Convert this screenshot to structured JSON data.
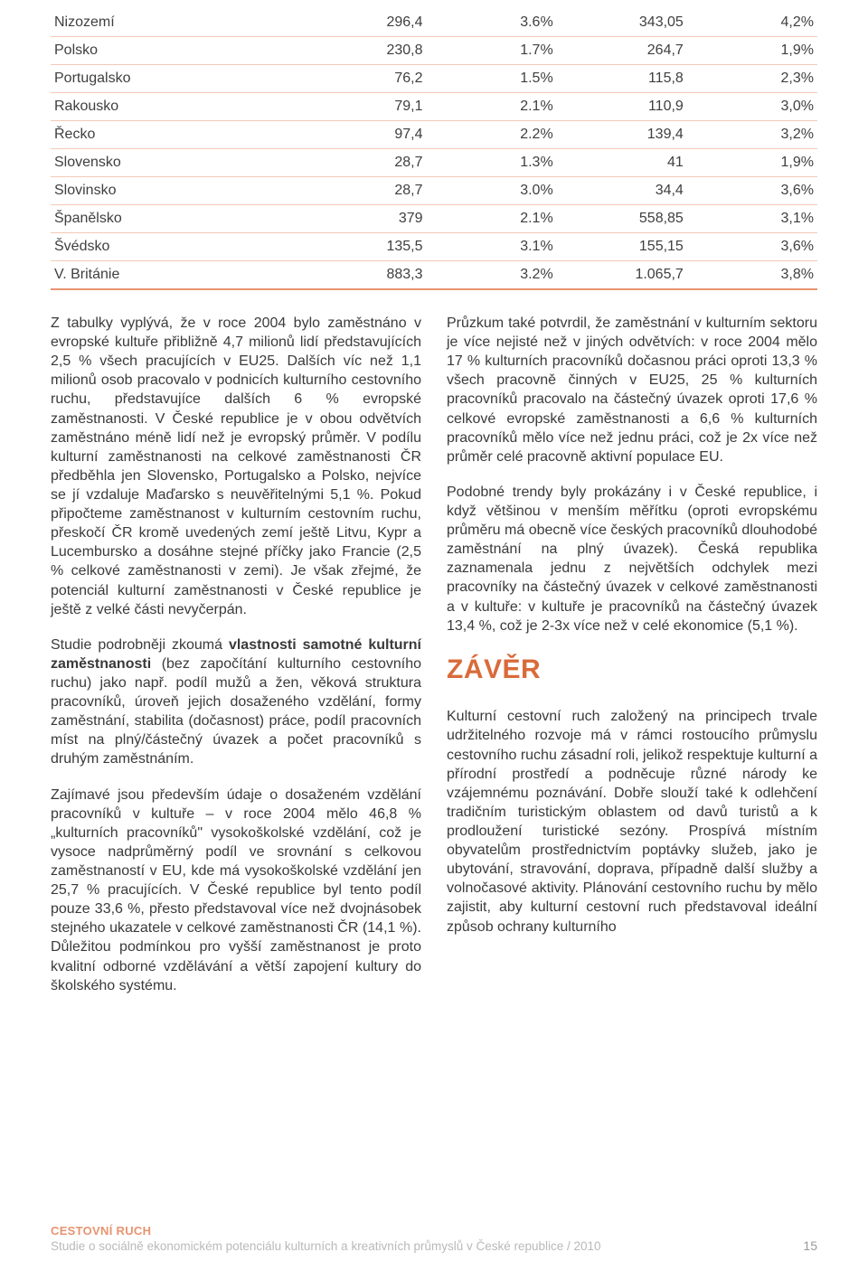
{
  "table": {
    "rows": [
      {
        "country": "Nizozemí",
        "v1": "296,4",
        "p1": "3.6%",
        "v2": "343,05",
        "p2": "4,2%"
      },
      {
        "country": "Polsko",
        "v1": "230,8",
        "p1": "1.7%",
        "v2": "264,7",
        "p2": "1,9%"
      },
      {
        "country": "Portugalsko",
        "v1": "76,2",
        "p1": "1.5%",
        "v2": "115,8",
        "p2": "2,3%"
      },
      {
        "country": "Rakousko",
        "v1": "79,1",
        "p1": "2.1%",
        "v2": "110,9",
        "p2": "3,0%"
      },
      {
        "country": "Řecko",
        "v1": "97,4",
        "p1": "2.2%",
        "v2": "139,4",
        "p2": "3,2%"
      },
      {
        "country": "Slovensko",
        "v1": "28,7",
        "p1": "1.3%",
        "v2": "41",
        "p2": "1,9%"
      },
      {
        "country": "Slovinsko",
        "v1": "28,7",
        "p1": "3.0%",
        "v2": "34,4",
        "p2": "3,6%"
      },
      {
        "country": "Španělsko",
        "v1": "379",
        "p1": "2.1%",
        "v2": "558,85",
        "p2": "3,1%"
      },
      {
        "country": "Švédsko",
        "v1": "135,5",
        "p1": "3.1%",
        "v2": "155,15",
        "p2": "3,6%"
      },
      {
        "country": "V. Británie",
        "v1": "883,3",
        "p1": "3.2%",
        "v2": "1.065,7",
        "p2": "3,8%"
      }
    ],
    "row_border_color": "#f4c9b8",
    "last_row_border_color": "#e89470",
    "text_color": "#3f3f3f"
  },
  "body_left": {
    "p1": "Z tabulky vyplývá, že v roce 2004 bylo zaměstnáno v evropské kultuře přibližně 4,7 milionů lidí představujících 2,5 % všech pracujících v EU25. Dalších víc než 1,1 milionů osob pracovalo v podnicích kulturního cestovního ruchu, představujíce dalších 6 % evropské zaměstnanosti. V České republice je v obou odvětvích zaměstnáno méně lidí než je evropský průměr. V podílu kulturní zaměstnanosti na celkové zaměstnanosti ČR předběhla jen Slovensko, Portugalsko a Polsko, nejvíce se jí vzdaluje Maďarsko s neuvěřitelnými 5,1 %. Pokud připočteme zaměstnanost v kulturním cestovním ruchu, přeskočí ČR kromě uvedených zemí ještě Litvu, Kypr a Lucembursko a dosáhne stejné příčky jako Francie (2,5 % celkové zaměstnanosti v zemi). Je však zřejmé, že potenciál kulturní zaměstnanosti v České republice je ještě z velké části nevyčerpán.",
    "p2a": "Studie podrobněji zkoumá ",
    "p2b": "vlastnosti samotné kulturní zaměstnanosti",
    "p2c": " (bez započítání kulturního cestovního ruchu) jako např. podíl mužů a žen, věková struktura pracovníků, úroveň jejich dosaženého vzdělání, formy zaměstnání, stabilita (dočasnost) práce, podíl pracovních míst na plný/částečný úvazek a počet pracovníků s druhým zaměstnáním.",
    "p3": "Zajímavé jsou především údaje o dosaženém vzdělání pracovníků v kultuře – v roce 2004 mělo 46,8 % „kulturních pracovníků\" vysokoškolské vzdělání, což je vysoce nadprůměrný podíl ve srovnání s celkovou zaměstnaností v EU, kde má vysokoškolské vzdělání jen 25,7 % pracujících. V České republice byl tento podíl pouze 33,6 %, přesto představoval více než dvojnásobek stejného ukazatele v celkové zaměstnanosti ČR (14,1 %). Důležitou podmínkou pro vyšší zaměstnanost je proto kvalitní odborné vzdělávání a větší zapojení kultury do školského systému."
  },
  "body_right": {
    "p1": "Průzkum také potvrdil, že zaměstnání v kulturním sektoru je více nejisté než v jiných odvětvích: v roce 2004 mělo 17 % kulturních pracovníků dočasnou práci oproti 13,3 % všech pracovně činných v EU25, 25 % kulturních pracovníků pracovalo na částečný úvazek oproti 17,6 % celkové evropské zaměstnanosti a 6,6 % kulturních pracovníků mělo více než jednu práci, což je 2x více než průměr celé pracovně aktivní populace EU.",
    "p2": "Podobné trendy byly prokázány i v České republice, i když většinou v menším měřítku (oproti evropskému průměru má obecně více českých pracovníků dlouhodobé zaměstnání na plný úvazek). Česká republika zaznamenala jednu z největších odchylek mezi pracovníky na částečný úvazek v celkové zaměstnanosti a v kultuře: v kultuře je pracovníků na částečný úvazek 13,4 %, což je 2-3x více než v celé ekonomice (5,1 %).",
    "heading": "ZÁVĚR",
    "p3": "Kulturní cestovní ruch založený na principech trvale udržitelného rozvoje má v rámci rostoucího průmyslu cestovního ruchu zásadní roli, jelikož respektuje kulturní a přírodní prostředí a podněcuje různé národy ke vzájemnému poznávání. Dobře slouží také k odlehčení tradičním turistickým oblastem od davů turistů a k prodloužení turistické sezóny. Prospívá místním obyvatelům prostřednictvím poptávky služeb, jako je ubytování, stravování, doprava, případně další služby a volnočasové aktivity. Plánování cestovního ruchu by mělo zajistit, aby kulturní cestovní ruch představoval ideální způsob ochrany kulturního"
  },
  "footer": {
    "tag": "CESTOVNÍ RUCH",
    "sub": "Studie o sociálně ekonomickém potenciálu kulturních a kreativních průmyslů v České republice / 2010",
    "page": "15"
  },
  "colors": {
    "accent": "#d96b3a",
    "footer_tag": "#e89470",
    "footer_sub": "#b9b9b9",
    "body_text": "#3a3a3a"
  }
}
